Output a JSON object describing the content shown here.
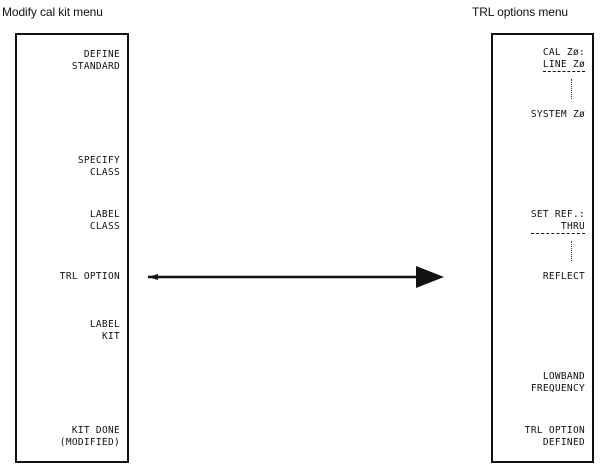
{
  "left_menu": {
    "title": "Modify cal kit menu",
    "keys": [
      {
        "l1": "DEFINE",
        "l2": "STANDARD"
      },
      {
        "l1": "SPECIFY",
        "l2": "CLASS"
      },
      {
        "l1": "LABEL",
        "l2": "CLASS"
      },
      {
        "l1": "TRL OPTION",
        "l2": ""
      },
      {
        "l1": "LABEL",
        "l2": "KIT"
      },
      {
        "l1": "KIT DONE",
        "l2": "(MODIFIED)"
      }
    ]
  },
  "right_menu": {
    "title": "TRL options menu",
    "keys": [
      {
        "l1": "CAL Zø:",
        "l2": "LINE Zø"
      },
      {
        "l1": "SYSTEM Zø",
        "l2": ""
      },
      {
        "l1": "SET REF.:",
        "l2": "THRU"
      },
      {
        "l1": "REFLECT",
        "l2": ""
      },
      {
        "l1": "LOWBAND",
        "l2": "FREQUENCY"
      },
      {
        "l1": "TRL OPTION",
        "l2": "DEFINED"
      }
    ]
  }
}
